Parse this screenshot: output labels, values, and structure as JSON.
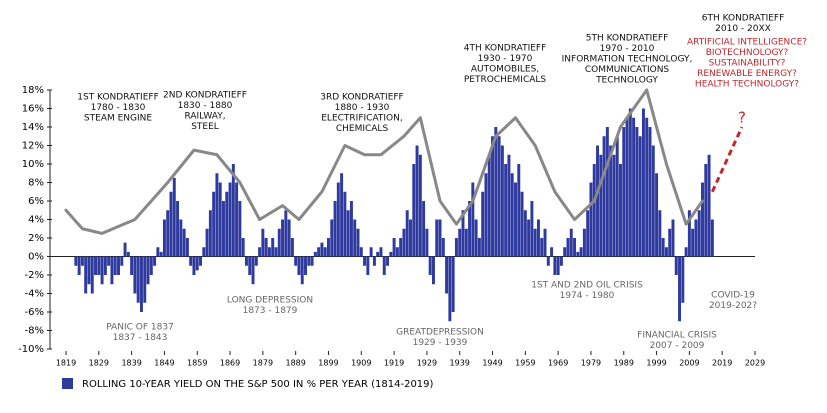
{
  "chart_data": {
    "type": "bar",
    "color": "#2e3a9e",
    "ylim": [
      -10,
      18
    ],
    "yticks": [
      {
        "value": -10,
        "label": "-10%"
      },
      {
        "value": -8,
        "label": "-8%"
      },
      {
        "value": -6,
        "label": "-6%"
      },
      {
        "value": -4,
        "label": "-4%"
      },
      {
        "value": -2,
        "label": "-2%"
      },
      {
        "value": 0,
        "label": "0%"
      },
      {
        "value": 2,
        "label": "2%"
      },
      {
        "value": 4,
        "label": "4%"
      },
      {
        "value": 6,
        "label": "6%"
      },
      {
        "value": 8,
        "label": "8%"
      },
      {
        "value": 10,
        "label": "10%"
      },
      {
        "value": 12,
        "label": "12%"
      },
      {
        "value": 14,
        "label": "14%"
      },
      {
        "value": 16,
        "label": "16%"
      },
      {
        "value": 18,
        "label": "18%"
      }
    ],
    "xlim": [
      1819,
      2029
    ],
    "xticks": [
      1819,
      1829,
      1839,
      1849,
      1859,
      1869,
      1879,
      1889,
      1899,
      1909,
      1919,
      1929,
      1939,
      1949,
      1959,
      1969,
      1979,
      1989,
      1999,
      2009,
      2019,
      2029
    ],
    "series": [
      {
        "name": "ROLLING 10-YEAR YIELD ON THE S&P 500 IN % PER YEAR (1814-2019)",
        "color": "#2e3a9e",
        "x": [
          1822,
          1823,
          1824,
          1825,
          1826,
          1827,
          1828,
          1829,
          1830,
          1831,
          1832,
          1833,
          1834,
          1835,
          1836,
          1837,
          1838,
          1839,
          1840,
          1841,
          1842,
          1843,
          1844,
          1845,
          1846,
          1847,
          1848,
          1849,
          1850,
          1851,
          1852,
          1853,
          1854,
          1855,
          1856,
          1857,
          1858,
          1859,
          1860,
          1861,
          1862,
          1863,
          1864,
          1865,
          1866,
          1867,
          1868,
          1869,
          1870,
          1871,
          1872,
          1873,
          1874,
          1875,
          1876,
          1877,
          1878,
          1879,
          1880,
          1881,
          1882,
          1883,
          1884,
          1885,
          1886,
          1887,
          1888,
          1889,
          1890,
          1891,
          1892,
          1893,
          1894,
          1895,
          1896,
          1897,
          1898,
          1899,
          1900,
          1901,
          1902,
          1903,
          1904,
          1905,
          1906,
          1907,
          1908,
          1909,
          1910,
          1911,
          1912,
          1913,
          1914,
          1915,
          1916,
          1917,
          1918,
          1919,
          1920,
          1921,
          1922,
          1923,
          1924,
          1925,
          1926,
          1927,
          1928,
          1929,
          1930,
          1931,
          1932,
          1933,
          1934,
          1935,
          1936,
          1937,
          1938,
          1939,
          1940,
          1941,
          1942,
          1943,
          1944,
          1945,
          1946,
          1947,
          1948,
          1949,
          1950,
          1951,
          1952,
          1953,
          1954,
          1955,
          1956,
          1957,
          1958,
          1959,
          1960,
          1961,
          1962,
          1963,
          1964,
          1965,
          1966,
          1967,
          1968,
          1969,
          1970,
          1971,
          1972,
          1973,
          1974,
          1975,
          1976,
          1977,
          1978,
          1979,
          1980,
          1981,
          1982,
          1983,
          1984,
          1985,
          1986,
          1987,
          1988,
          1989,
          1990,
          1991,
          1992,
          1993,
          1994,
          1995,
          1996,
          1997,
          1998,
          1999,
          2000,
          2001,
          2002,
          2003,
          2004,
          2005,
          2006,
          2007,
          2008,
          2009,
          2010,
          2011,
          2012,
          2013,
          2014,
          2015,
          2016
        ],
        "values": [
          -1,
          -2,
          -1,
          -4,
          -3,
          -4,
          -2,
          -2,
          -3,
          -2,
          -1,
          -3,
          -2,
          -2,
          -1,
          1.5,
          0.5,
          -2,
          -4,
          -5,
          -6,
          -5,
          -3,
          -2,
          -1,
          1,
          0.5,
          4,
          5,
          7,
          8.5,
          6,
          4,
          3,
          2,
          -1,
          -2,
          -1.5,
          -1,
          1,
          3,
          5,
          7,
          9,
          8,
          6,
          7,
          8,
          10,
          8,
          6,
          2,
          -1,
          -2,
          -3,
          -1,
          1,
          3,
          2,
          1,
          2,
          1,
          3,
          4,
          5,
          4,
          2,
          -1,
          -2,
          -3,
          -2,
          -1,
          -1,
          0.5,
          1,
          1.5,
          1,
          2,
          4,
          6,
          8,
          9,
          7,
          5,
          6,
          4,
          3,
          1,
          -1,
          -2,
          1,
          -1,
          0.5,
          1,
          -2,
          -1,
          0.5,
          2,
          1,
          2,
          3,
          5,
          4,
          10,
          12,
          11,
          6,
          3,
          -2,
          -3,
          4,
          4,
          2,
          -4,
          -7,
          -6,
          2,
          3,
          5,
          3,
          6,
          8,
          4,
          2,
          7,
          9,
          11,
          13,
          14,
          13,
          12,
          10,
          11,
          9,
          8,
          10,
          7,
          5,
          4,
          6,
          3,
          4,
          2,
          3,
          -1,
          1,
          -2,
          -2,
          -1,
          1,
          2,
          3,
          2,
          0.5,
          1,
          3,
          5,
          8,
          10,
          12,
          11,
          13,
          14,
          12,
          11,
          13,
          10,
          14,
          15,
          16,
          15,
          14,
          13,
          16,
          15,
          14,
          12,
          9,
          5,
          2,
          1,
          3,
          4,
          -2,
          -7,
          -5,
          1,
          5,
          3,
          4,
          5,
          8,
          10,
          11,
          4
        ]
      }
    ],
    "curve": {
      "color": "#888888",
      "x": [
        1819,
        1824,
        1830,
        1840,
        1850,
        1858,
        1865,
        1872,
        1878,
        1885,
        1890,
        1897,
        1904,
        1910,
        1915,
        1922,
        1927,
        1933,
        1938,
        1943,
        1950,
        1956,
        1962,
        1968,
        1974,
        1980,
        1988,
        1996,
        2002,
        2008,
        2013
      ],
      "values": [
        5,
        3,
        2.5,
        4,
        8,
        11.5,
        11,
        8,
        4,
        5.5,
        4,
        7,
        12,
        11,
        11,
        13,
        15,
        6,
        3.5,
        6,
        13,
        15,
        12,
        7,
        4,
        6,
        14,
        18,
        10,
        3.5,
        6
      ]
    },
    "projection": {
      "color": "#c0282d",
      "x": [
        2016,
        2025
      ],
      "values": [
        7,
        14
      ]
    },
    "annotations": [
      {
        "lines": [
          "1ST KONDRATIEFF",
          "1780 - 1830",
          "STEAM ENGINE"
        ],
        "color": "#111111"
      },
      {
        "lines": [
          "2ND KONDRATIEFF",
          "1830 - 1880",
          "RAILWAY,",
          "STEEL"
        ],
        "color": "#111111"
      },
      {
        "lines": [
          "3RD KONDRATIEFF",
          "1880 - 1930",
          "ELECTRIFICATION,",
          "CHEMICALS"
        ],
        "color": "#111111"
      },
      {
        "lines": [
          "4TH KONDRATIEFF",
          "1930 - 1970",
          "AUTOMOBILES,",
          "PETROCHEMICALS"
        ],
        "color": "#111111"
      },
      {
        "lines": [
          "5TH KONDRATIEFF",
          "1970 - 2010",
          "INFORMATION TECHNOLOGY,",
          "COMMUNICATIONS",
          "TECHNOLOGY"
        ],
        "color": "#111111"
      },
      {
        "lines": [
          "6TH KONDRATIEFF",
          "2010 - 20XX"
        ],
        "color": "#111111"
      },
      {
        "lines": [
          "ARTIFICIAL INTELLIGENCE?",
          "BIOTECHNOLOGY?",
          "SUSTAINABILITY?",
          "RENEWABLE ENERGY?",
          "HEALTH TECHNOLOGY?"
        ],
        "color": "#c0282d"
      },
      {
        "lines": [
          "PANIC OF 1837",
          "1837 - 1843"
        ],
        "color": "#666666"
      },
      {
        "lines": [
          "LONG DEPRESSION",
          "1873 - 1879"
        ],
        "color": "#666666"
      },
      {
        "lines": [
          "GREATDEPRESSION",
          "1929 - 1939"
        ],
        "color": "#666666"
      },
      {
        "lines": [
          "1ST AND 2ND OIL CRISIS",
          "1974 - 1980"
        ],
        "color": "#666666"
      },
      {
        "lines": [
          "FINANCIAL CRISIS",
          "2007 - 2009"
        ],
        "color": "#666666"
      },
      {
        "lines": [
          "COVID-19",
          "2019-202?"
        ],
        "color": "#666666"
      },
      {
        "lines": [
          "?"
        ],
        "color": "#c0282d"
      }
    ]
  }
}
